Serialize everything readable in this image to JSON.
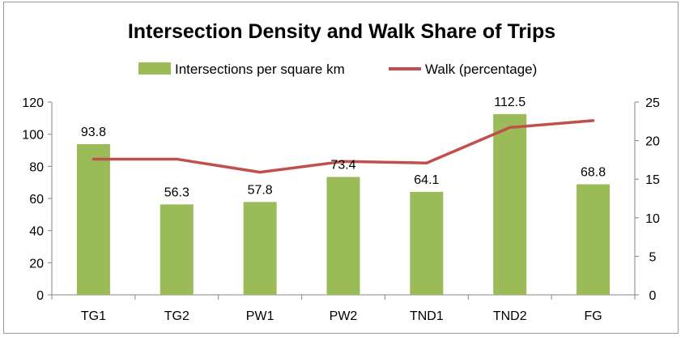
{
  "chart_data": {
    "type": "bar",
    "title": "Intersection Density and Walk Share of Trips",
    "categories": [
      "TG1",
      "TG2",
      "PW1",
      "PW2",
      "TND1",
      "TND2",
      "FG"
    ],
    "series": [
      {
        "name": "Intersections per square km",
        "type": "bar",
        "axis": "left",
        "color": "#9bbb59",
        "values": [
          93.8,
          56.3,
          57.8,
          73.4,
          64.1,
          112.5,
          68.8
        ],
        "labels": [
          "93.8",
          "56.3",
          "57.8",
          "73.4",
          "64.1",
          "112.5",
          "68.8"
        ]
      },
      {
        "name": "Walk (percentage)",
        "type": "line",
        "axis": "right",
        "color": "#c0504d",
        "values": [
          17.6,
          17.6,
          15.9,
          17.3,
          17.1,
          21.7,
          22.6
        ]
      }
    ],
    "y_left": {
      "min": 0,
      "max": 120,
      "ticks": [
        "0",
        "20",
        "40",
        "60",
        "80",
        "100",
        "120"
      ]
    },
    "y_right": {
      "min": 0,
      "max": 25,
      "ticks": [
        "0",
        "5",
        "10",
        "15",
        "20",
        "25"
      ]
    },
    "legend_position": "top",
    "grid": false
  }
}
